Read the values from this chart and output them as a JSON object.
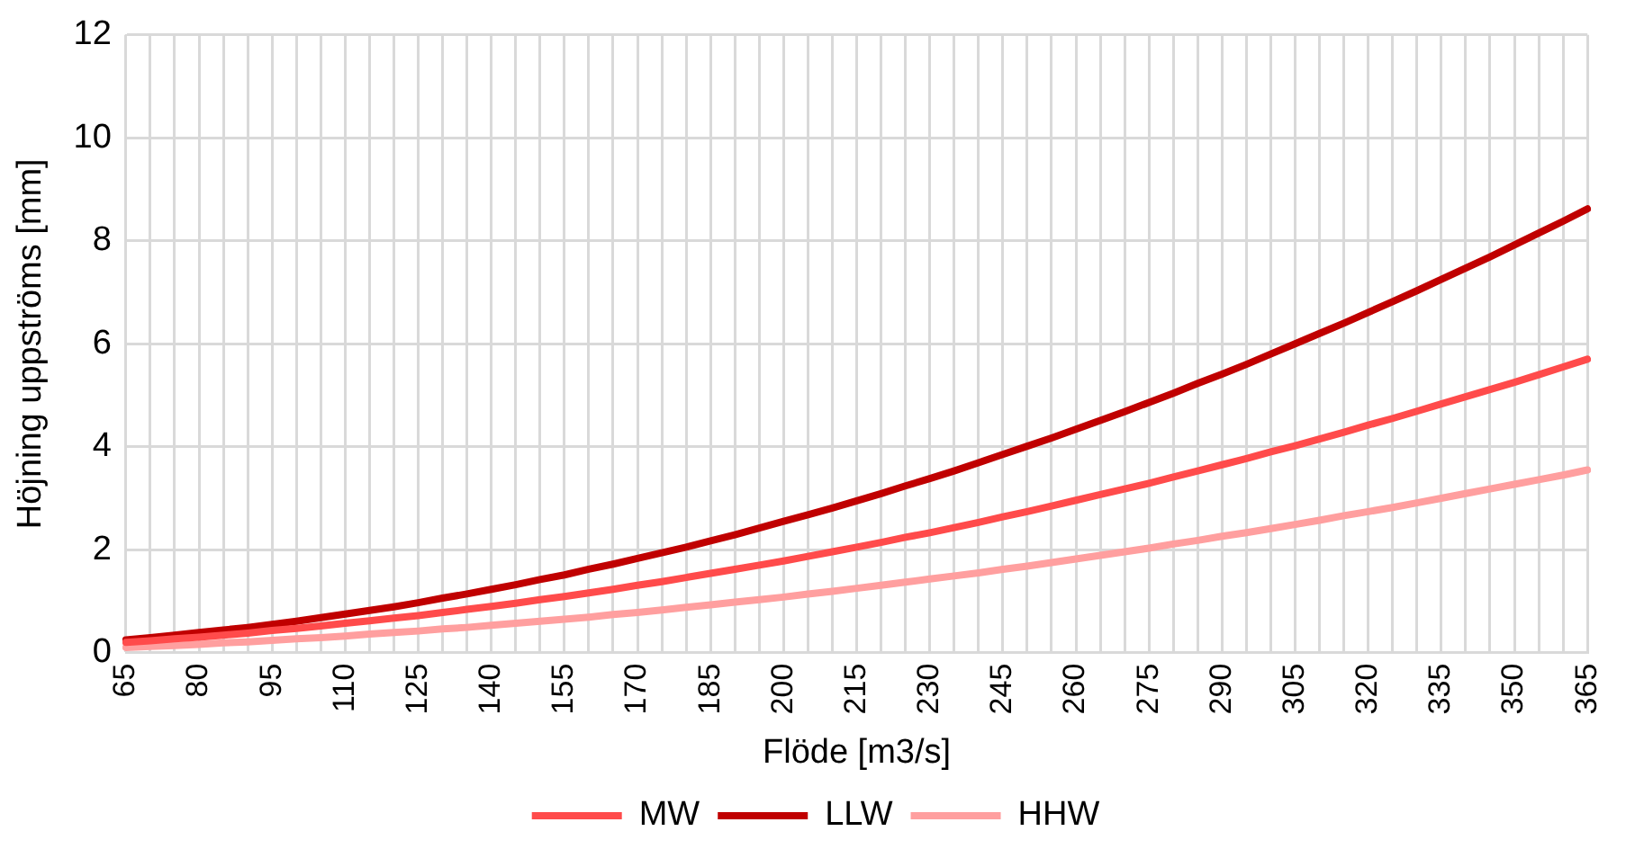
{
  "chart_data": {
    "type": "line",
    "xlabel": "Flöde [m3/s]",
    "ylabel": "Höjning uppströms [mm]",
    "categories": [
      "65",
      null,
      null,
      "80",
      null,
      null,
      "95",
      null,
      null,
      "110",
      null,
      null,
      "125",
      null,
      null,
      "140",
      null,
      null,
      "155",
      null,
      null,
      "170",
      null,
      null,
      "185",
      null,
      null,
      "200",
      null,
      null,
      "215",
      null,
      null,
      "230",
      null,
      null,
      "245",
      null,
      null,
      "260",
      null,
      null,
      "275",
      null,
      null,
      "290",
      null,
      null,
      "305",
      null,
      null,
      "320",
      null,
      null,
      "335",
      null,
      null,
      "350",
      null,
      null,
      "365"
    ],
    "series": [
      {
        "name": "MW",
        "color": "#ff4b4b",
        "values": [
          0.2,
          0.23,
          0.27,
          0.3,
          0.34,
          0.38,
          0.43,
          0.47,
          0.52,
          0.57,
          0.62,
          0.67,
          0.72,
          0.78,
          0.84,
          0.9,
          0.96,
          1.03,
          1.09,
          1.16,
          1.23,
          1.31,
          1.38,
          1.46,
          1.54,
          1.62,
          1.7,
          1.78,
          1.87,
          1.96,
          2.05,
          2.14,
          2.24,
          2.33,
          2.43,
          2.53,
          2.64,
          2.74,
          2.85,
          2.96,
          3.07,
          3.18,
          3.29,
          3.41,
          3.53,
          3.65,
          3.77,
          3.9,
          4.02,
          4.15,
          4.28,
          4.42,
          4.55,
          4.69,
          4.83,
          4.97,
          5.11,
          5.25,
          5.4,
          5.55,
          5.7
        ]
      },
      {
        "name": "LLW",
        "color": "#c00000",
        "values": [
          0.25,
          0.29,
          0.34,
          0.39,
          0.44,
          0.49,
          0.55,
          0.61,
          0.68,
          0.75,
          0.82,
          0.89,
          0.97,
          1.06,
          1.14,
          1.23,
          1.32,
          1.42,
          1.51,
          1.62,
          1.72,
          1.83,
          1.94,
          2.05,
          2.17,
          2.29,
          2.42,
          2.55,
          2.68,
          2.81,
          2.95,
          3.09,
          3.24,
          3.38,
          3.53,
          3.69,
          3.85,
          4.01,
          4.17,
          4.34,
          4.51,
          4.68,
          4.86,
          5.04,
          5.23,
          5.41,
          5.6,
          5.8,
          6.0,
          6.2,
          6.4,
          6.61,
          6.82,
          7.03,
          7.25,
          7.47,
          7.69,
          7.92,
          8.15,
          8.38,
          8.62
        ]
      },
      {
        "name": "HHW",
        "color": "#ff9f9f",
        "values": [
          0.1,
          0.12,
          0.14,
          0.16,
          0.19,
          0.21,
          0.24,
          0.27,
          0.29,
          0.32,
          0.36,
          0.39,
          0.42,
          0.46,
          0.49,
          0.53,
          0.57,
          0.61,
          0.65,
          0.69,
          0.74,
          0.78,
          0.83,
          0.88,
          0.93,
          0.98,
          1.03,
          1.08,
          1.14,
          1.19,
          1.25,
          1.31,
          1.37,
          1.43,
          1.49,
          1.55,
          1.62,
          1.68,
          1.75,
          1.82,
          1.89,
          1.96,
          2.03,
          2.11,
          2.18,
          2.26,
          2.33,
          2.41,
          2.49,
          2.57,
          2.66,
          2.74,
          2.82,
          2.91,
          3.0,
          3.09,
          3.18,
          3.27,
          3.36,
          3.45,
          3.55
        ]
      }
    ],
    "ylim": [
      0,
      12
    ],
    "yticks": [
      0,
      2,
      4,
      6,
      8,
      10,
      12
    ],
    "grid": true,
    "legend": "bottom",
    "marker": "none",
    "line_style": "solid"
  }
}
